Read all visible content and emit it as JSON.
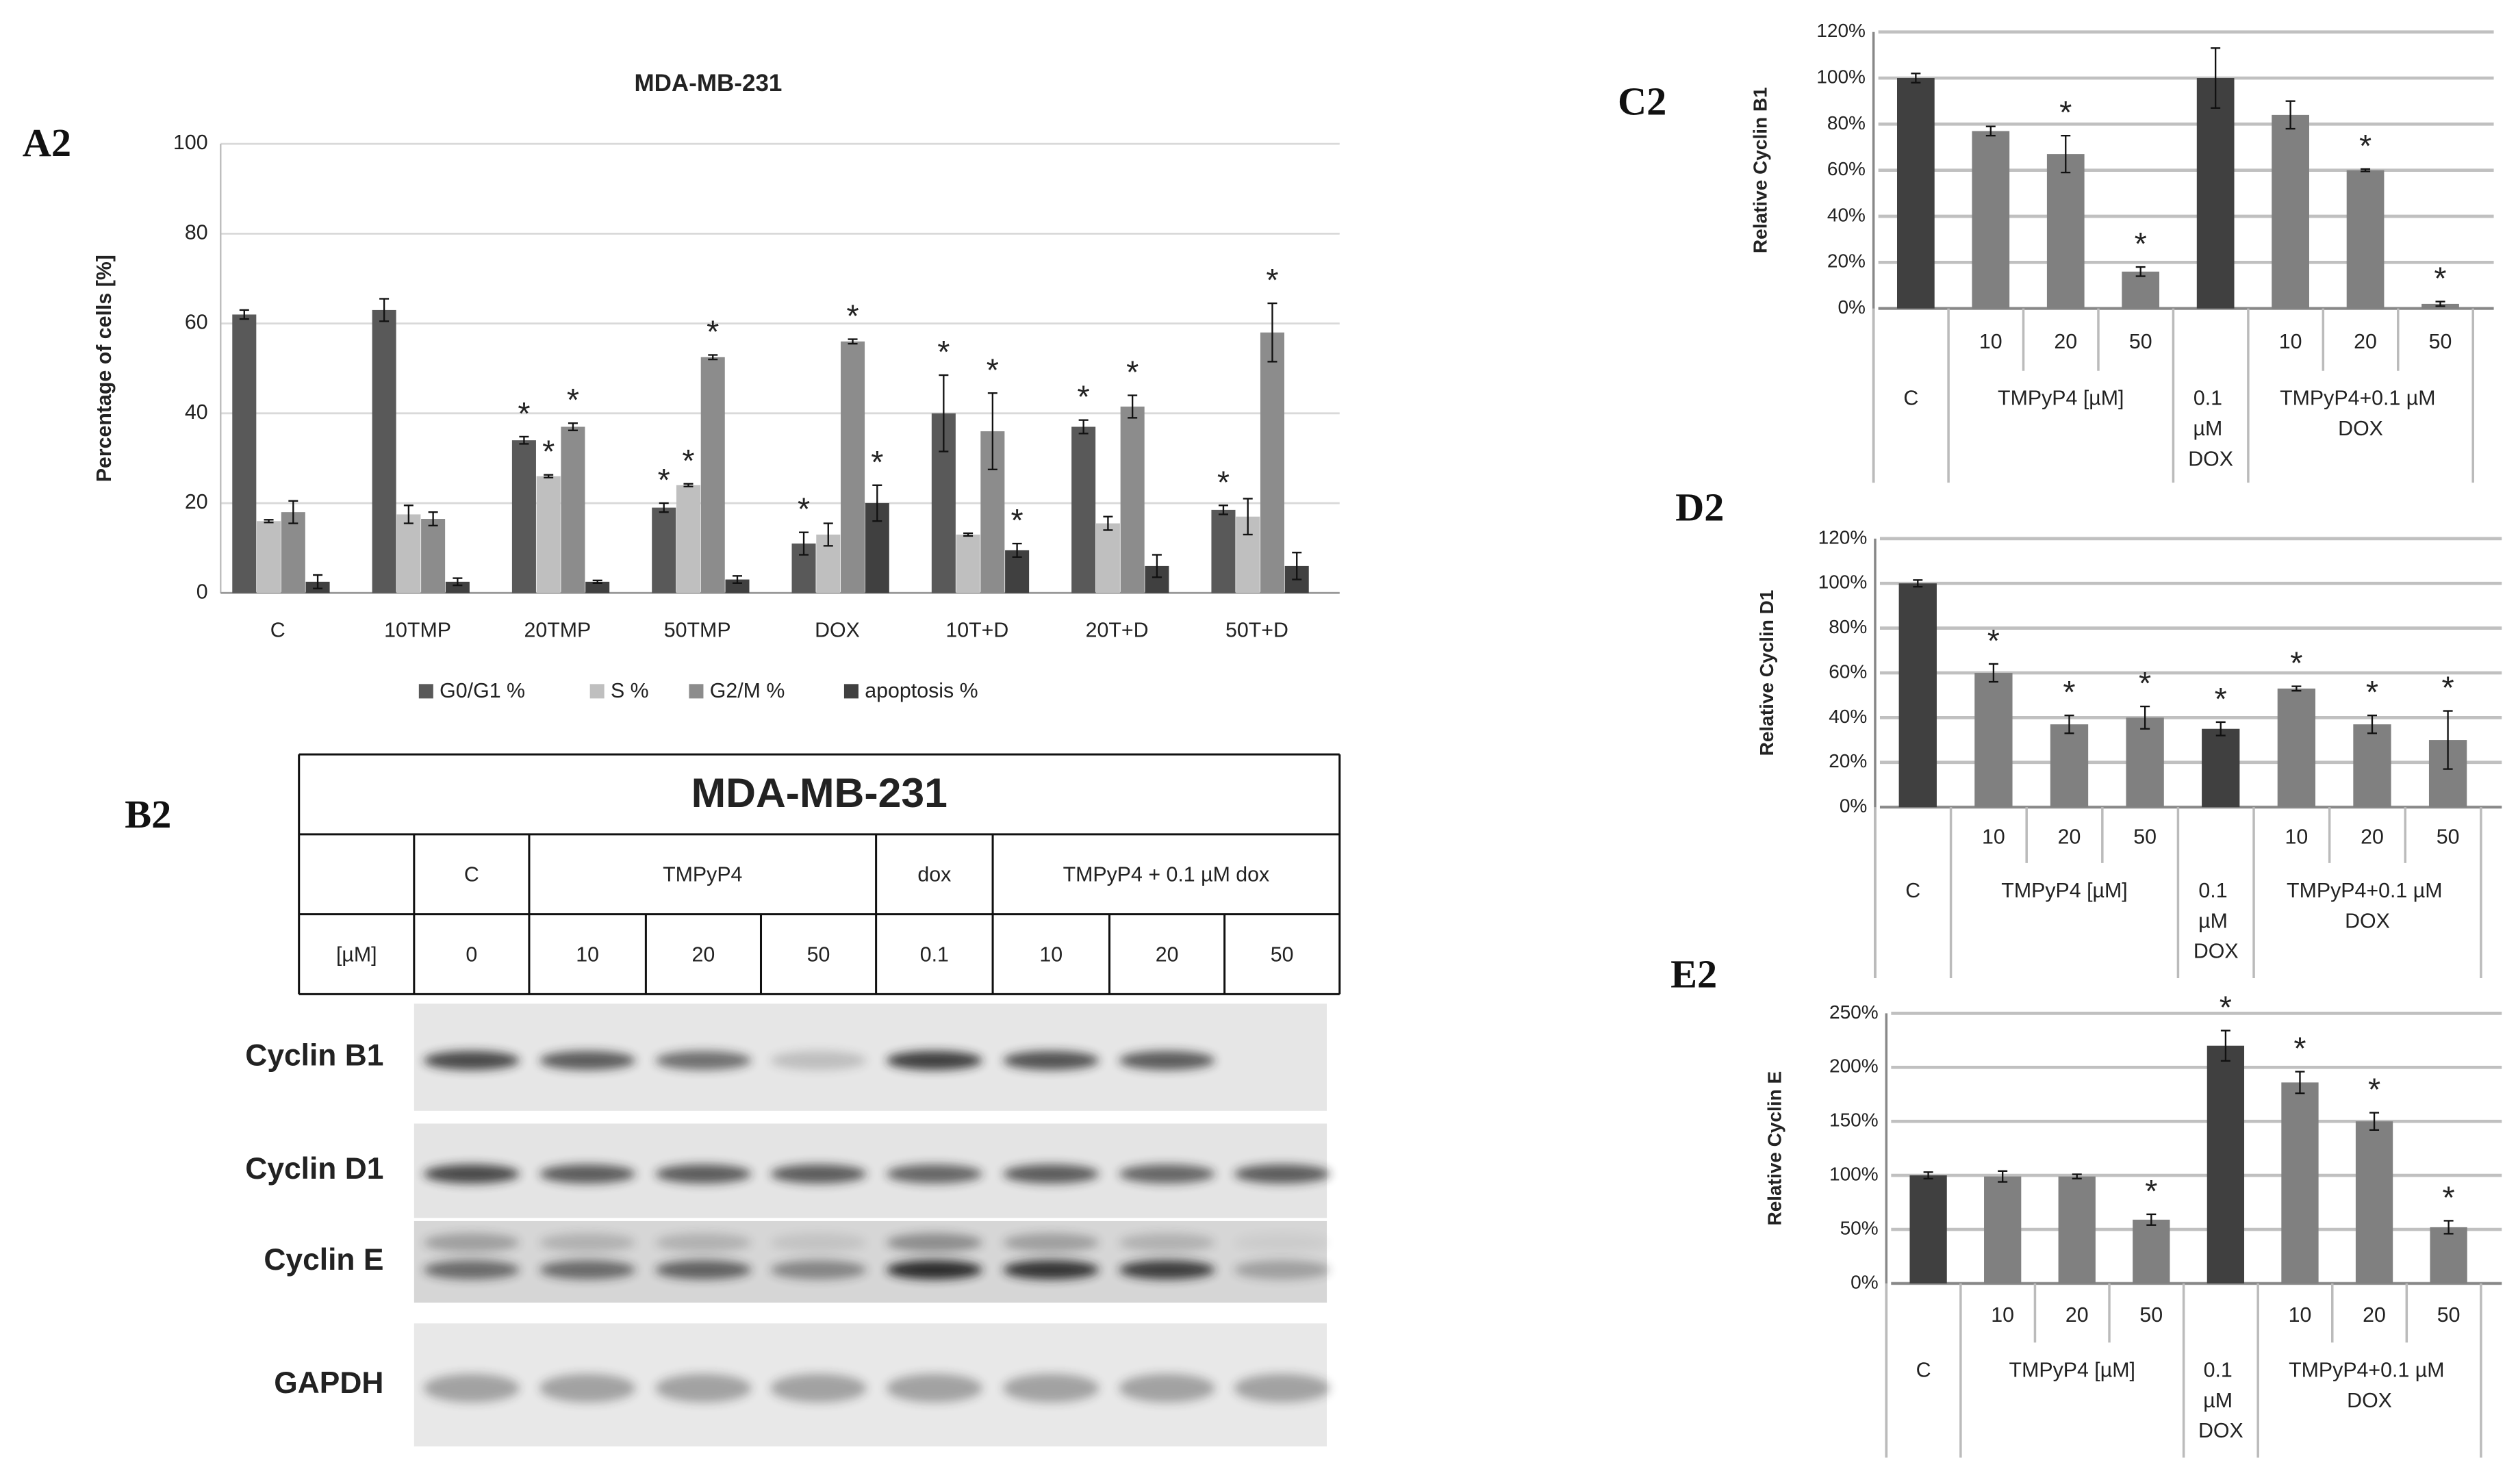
{
  "chart_data": [
    {
      "type": "bar",
      "panel": "A2",
      "title": "MDA-MB-231",
      "y_label": "Percentage of cells [%]",
      "categories": [
        "C",
        "10TMP",
        "20TMP",
        "50TMP",
        "DOX",
        "10T+D",
        "20T+D",
        "50T+D"
      ],
      "series": [
        {
          "name": "G0/G1 %",
          "color": "#595959",
          "values": [
            62,
            63,
            34,
            19,
            11,
            40,
            37,
            18.5
          ],
          "errors": [
            1,
            2.5,
            0.8,
            1,
            2.5,
            8.5,
            1.5,
            1
          ],
          "annotations": [
            null,
            null,
            "*",
            "*",
            "*",
            "*",
            "*",
            "*"
          ]
        },
        {
          "name": "S %",
          "color": "#bfbfbf",
          "values": [
            16,
            17.5,
            26,
            24,
            13,
            13,
            15.5,
            17
          ],
          "errors": [
            0.3,
            2,
            0.3,
            0.3,
            2.5,
            0.3,
            1.5,
            4
          ],
          "annotations": [
            null,
            null,
            "*",
            "*",
            null,
            null,
            null,
            null
          ]
        },
        {
          "name": "G2/M %",
          "color": "#8c8c8c",
          "values": [
            18,
            16.5,
            37,
            52.5,
            56,
            36,
            41.5,
            58
          ],
          "errors": [
            2.5,
            1.5,
            0.8,
            0.5,
            0.5,
            8.5,
            2.5,
            6.5
          ],
          "annotations": [
            null,
            null,
            "*",
            "*",
            "*",
            "*",
            "*",
            "*"
          ]
        },
        {
          "name": "apoptosis %",
          "color": "#404040",
          "values": [
            2.5,
            2.5,
            2.5,
            3,
            20,
            9.5,
            6,
            6
          ],
          "errors": [
            1.5,
            0.8,
            0.3,
            0.8,
            4,
            1.5,
            2.5,
            3
          ],
          "annotations": [
            null,
            null,
            null,
            null,
            "*",
            "*",
            null,
            null
          ]
        }
      ],
      "ylim": [
        0,
        100
      ],
      "yticks": [
        0,
        20,
        40,
        60,
        80,
        100
      ],
      "grid": true,
      "legend": "bottom"
    },
    {
      "type": "bar",
      "panel": "C2",
      "y_label": "Relative Cyclin B1",
      "categories": [
        null,
        "10",
        "20",
        "50",
        null,
        "10",
        "20",
        "50"
      ],
      "groups": [
        "C",
        "TMPyP4 [µM]",
        "0.1 µM DOX",
        "TMPyP4+0.1 µM DOX"
      ],
      "values": [
        100,
        77,
        67,
        16,
        100,
        84,
        60,
        2
      ],
      "errors": [
        2,
        2,
        8,
        2,
        13,
        6,
        0.5,
        1
      ],
      "annotations": [
        null,
        null,
        "*",
        "*",
        null,
        null,
        "*",
        "*"
      ],
      "colors": [
        "#404040",
        "#808080",
        "#808080",
        "#808080",
        "#404040",
        "#808080",
        "#808080",
        "#808080"
      ],
      "ylim": [
        0,
        120
      ],
      "yticks": [
        {
          "value": 0,
          "label": "0%"
        },
        {
          "value": 20,
          "label": "20%"
        },
        {
          "value": 40,
          "label": "40%"
        },
        {
          "value": 60,
          "label": "60%"
        },
        {
          "value": 80,
          "label": "80%"
        },
        {
          "value": 100,
          "label": "100%"
        },
        {
          "value": 120,
          "label": "120%"
        }
      ],
      "grid": true
    },
    {
      "type": "bar",
      "panel": "D2",
      "y_label": "Relative Cyclin D1",
      "categories": [
        null,
        "10",
        "20",
        "50",
        null,
        "10",
        "20",
        "50"
      ],
      "groups": [
        "C",
        "TMPyP4 [µM]",
        "0.1 µM DOX",
        "TMPyP4+0.1 µM DOX"
      ],
      "values": [
        100,
        60,
        37,
        40,
        35,
        53,
        37,
        30
      ],
      "errors": [
        1.5,
        4,
        4,
        5,
        3,
        1,
        4,
        13
      ],
      "annotations": [
        null,
        "*",
        "*",
        "*",
        "*",
        "*",
        "*",
        "*"
      ],
      "colors": [
        "#404040",
        "#808080",
        "#808080",
        "#808080",
        "#404040",
        "#808080",
        "#808080",
        "#808080"
      ],
      "ylim": [
        0,
        120
      ],
      "yticks": [
        {
          "value": 0,
          "label": "0%"
        },
        {
          "value": 20,
          "label": "20%"
        },
        {
          "value": 40,
          "label": "40%"
        },
        {
          "value": 60,
          "label": "60%"
        },
        {
          "value": 80,
          "label": "80%"
        },
        {
          "value": 100,
          "label": "100%"
        },
        {
          "value": 120,
          "label": "120%"
        }
      ],
      "grid": true
    },
    {
      "type": "bar",
      "panel": "E2",
      "y_label": "Relative Cyclin E",
      "categories": [
        null,
        "10",
        "20",
        "50",
        null,
        "10",
        "20",
        "50"
      ],
      "groups": [
        "C",
        "TMPyP4 [µM]",
        "0.1 µM DOX",
        "TMPyP4+0.1 µM DOX"
      ],
      "values": [
        100,
        99,
        99,
        59,
        220,
        186,
        150,
        52
      ],
      "errors": [
        3,
        5,
        2,
        5,
        14,
        10,
        8,
        6
      ],
      "annotations": [
        null,
        null,
        null,
        "*",
        "*",
        "*",
        "*",
        "*"
      ],
      "colors": [
        "#404040",
        "#808080",
        "#808080",
        "#808080",
        "#404040",
        "#808080",
        "#808080",
        "#808080"
      ],
      "ylim": [
        0,
        250
      ],
      "yticks": [
        {
          "value": 0,
          "label": "0%"
        },
        {
          "value": 50,
          "label": "50%"
        },
        {
          "value": 100,
          "label": "100%"
        },
        {
          "value": 150,
          "label": "150%"
        },
        {
          "value": 200,
          "label": "200%"
        },
        {
          "value": 250,
          "label": "250%"
        }
      ],
      "grid": true
    }
  ],
  "blot": {
    "panel": "B2",
    "title": "MDA-MB-231",
    "header": [
      "C",
      "TMPyP4",
      "dox",
      "TMPyP4 + 0.1 µM dox"
    ],
    "unit_label": "[µM]",
    "doses": [
      "0",
      "10",
      "20",
      "50",
      "0.1",
      "10",
      "20",
      "50"
    ],
    "rows": [
      "Cyclin B1",
      "Cyclin D1",
      "Cyclin E",
      "GAPDH"
    ]
  }
}
